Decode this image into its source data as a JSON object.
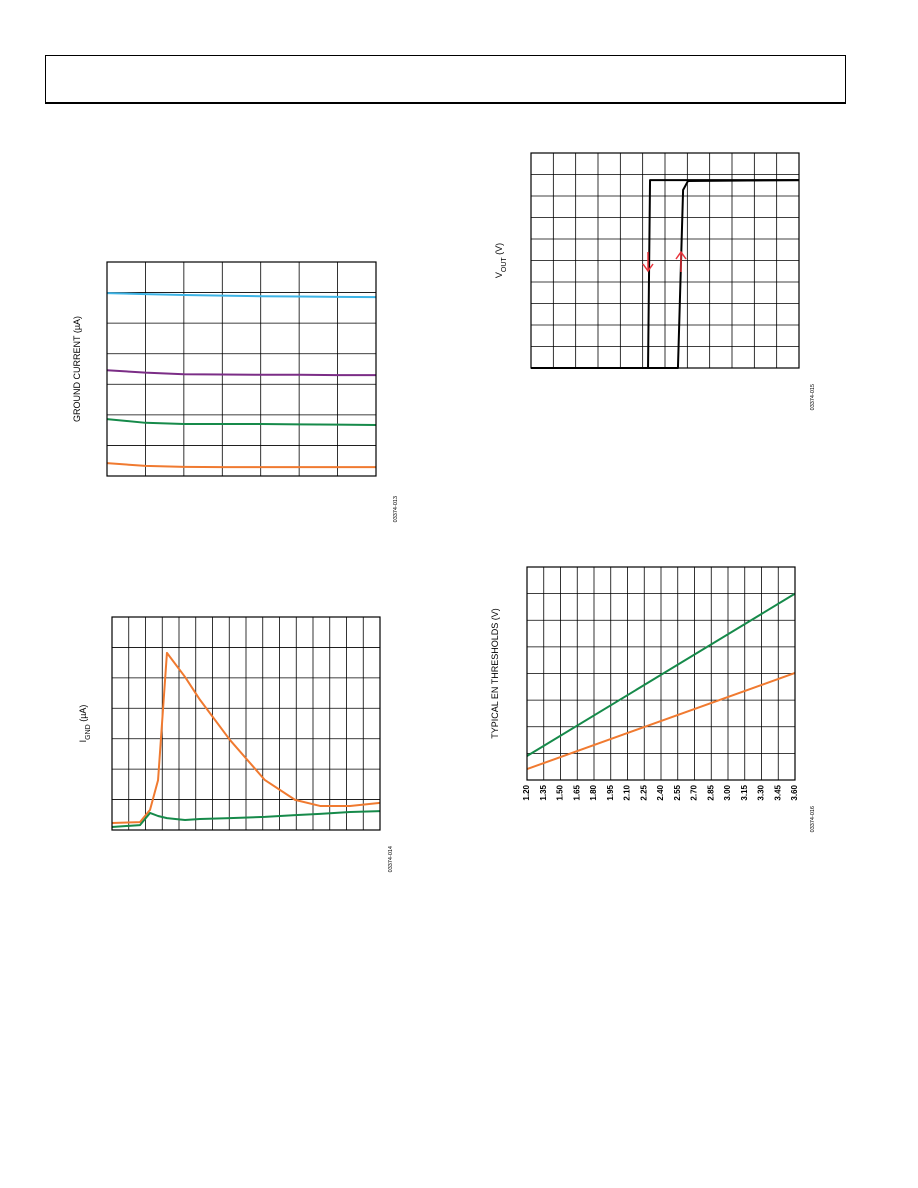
{
  "chart_data": [
    {
      "type": "line",
      "ylabel": "GROUND CURRENT (µA)",
      "note": "03374-013",
      "xlim": [
        0,
        7
      ],
      "ylim": [
        0,
        7
      ],
      "grid": {
        "x": 7,
        "y": 7
      },
      "x": [
        0,
        1,
        2,
        3,
        4,
        5,
        6,
        7
      ],
      "series": [
        {
          "color": "#3db4e6",
          "values": [
            5.98,
            5.95,
            5.92,
            5.9,
            5.88,
            5.87,
            5.86,
            5.85
          ]
        },
        {
          "color": "#7b2d86",
          "values": [
            3.46,
            3.38,
            3.33,
            3.32,
            3.31,
            3.31,
            3.3,
            3.3
          ]
        },
        {
          "color": "#168a4a",
          "values": [
            1.86,
            1.74,
            1.7,
            1.7,
            1.7,
            1.69,
            1.68,
            1.67
          ]
        },
        {
          "color": "#f07a30",
          "values": [
            0.42,
            0.33,
            0.3,
            0.29,
            0.29,
            0.29,
            0.29,
            0.29
          ]
        }
      ]
    },
    {
      "type": "line",
      "ylabel": [
        "I",
        "GND",
        " (µA)"
      ],
      "note": "03374-014",
      "xlim": [
        0,
        16
      ],
      "ylim": [
        0,
        7
      ],
      "grid": {
        "x": 16,
        "y": 7
      },
      "x": [
        0,
        1.67,
        2.27,
        2.75,
        3.28,
        4.36,
        5.25,
        7.04,
        9.13,
        10.93,
        12.42,
        14.21,
        16
      ],
      "series": [
        {
          "color": "#f07a30",
          "values": [
            0.23,
            0.26,
            0.66,
            1.64,
            5.82,
            5.03,
            4.28,
            2.96,
            1.64,
            0.99,
            0.79,
            0.79,
            0.89
          ]
        },
        {
          "color": "#168a4a",
          "values": [
            0.1,
            0.16,
            0.56,
            0.46,
            0.39,
            0.33,
            0.36,
            0.39,
            0.43,
            0.49,
            0.53,
            0.59,
            0.62
          ]
        }
      ]
    },
    {
      "type": "line",
      "ylabel": [
        "V",
        "OUT",
        " (V)"
      ],
      "note": "03374-015",
      "xlim": [
        0,
        12
      ],
      "ylim": [
        0,
        10
      ],
      "grid": {
        "x": 12,
        "y": 10
      },
      "series": [
        {
          "color": "#000000",
          "x": [
            0,
            5.24,
            5.33,
            12
          ],
          "values": [
            0,
            0,
            8.74,
            8.74
          ]
        },
        {
          "color": "#000000",
          "x": [
            0,
            6.58,
            6.81,
            7.03,
            12
          ],
          "values": [
            0,
            0,
            8.28,
            8.7,
            8.74
          ]
        }
      ]
    },
    {
      "type": "line",
      "ylabel": "TYPICAL EN THRESHOLDS (V)",
      "note": "03374-016",
      "xlim": [
        1.2,
        3.6
      ],
      "ylim": [
        0,
        8
      ],
      "grid": {
        "y": 8
      },
      "xticks": [
        {
          "value": 1.2,
          "label": "1.20"
        },
        {
          "value": 1.35,
          "label": "1.35"
        },
        {
          "value": 1.5,
          "label": "1.50"
        },
        {
          "value": 1.65,
          "label": "1.65"
        },
        {
          "value": 1.8,
          "label": "1.80"
        },
        {
          "value": 1.95,
          "label": "1.95"
        },
        {
          "value": 2.1,
          "label": "2.10"
        },
        {
          "value": 2.25,
          "label": "2.25"
        },
        {
          "value": 2.4,
          "label": "2.40"
        },
        {
          "value": 2.55,
          "label": "2.55"
        },
        {
          "value": 2.7,
          "label": "2.70"
        },
        {
          "value": 2.85,
          "label": "2.85"
        },
        {
          "value": 3.0,
          "label": "3.00"
        },
        {
          "value": 3.15,
          "label": "3.15"
        },
        {
          "value": 3.3,
          "label": "3.30"
        },
        {
          "value": 3.45,
          "label": "3.45"
        },
        {
          "value": 3.6,
          "label": "3.60"
        }
      ],
      "x": [
        1.2,
        3.6
      ],
      "series": [
        {
          "color": "#168a4a",
          "values": [
            0.9,
            7.0
          ]
        },
        {
          "color": "#f07a30",
          "values": [
            0.41,
            4.02
          ]
        }
      ]
    }
  ]
}
